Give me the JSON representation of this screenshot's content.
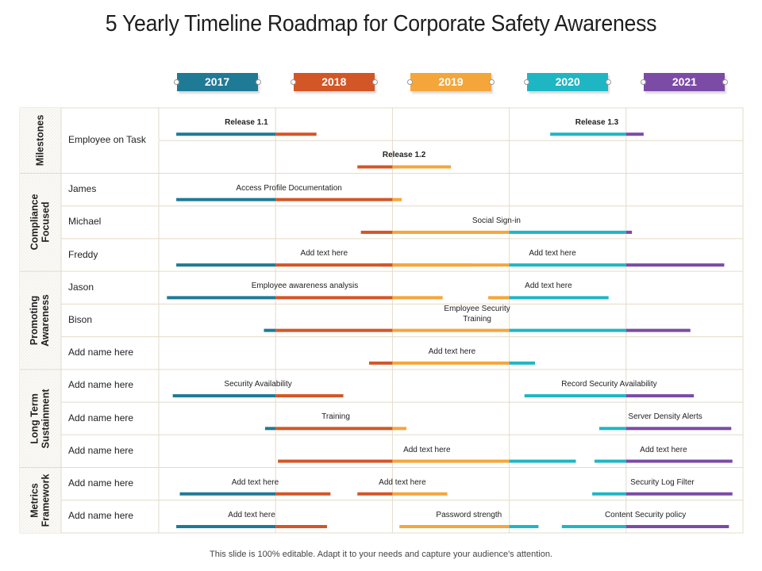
{
  "title": "5 Yearly Timeline Roadmap for Corporate Safety Awareness",
  "footer": "This slide is 100% editable. Adapt it to your needs and capture your audience's attention.",
  "colors": {
    "2017": "#1f7a96",
    "2018": "#d35626",
    "2019": "#f5a63b",
    "2020": "#1fb6c4",
    "2021": "#7b4ba6",
    "grid": "#e2dcc8"
  },
  "years": [
    "2017",
    "2018",
    "2019",
    "2020",
    "2021"
  ],
  "groups": [
    {
      "label": "Milestones",
      "rows": [
        "Employee on Task"
      ]
    },
    {
      "label": "Compliance\nFocused",
      "rows": [
        "James",
        "Michael",
        "Freddy"
      ]
    },
    {
      "label": "Promoting\nAwareness",
      "rows": [
        "Jason",
        "Bison",
        "Add name here"
      ]
    },
    {
      "label": "Long Term\nSustainment",
      "rows": [
        "Add name here",
        "Add name here",
        "Add name here"
      ]
    },
    {
      "label": "Metrics\nFramework",
      "rows": [
        "Add name here",
        "Add name here"
      ]
    }
  ],
  "chart_data": {
    "type": "gantt",
    "x_axis": {
      "unit": "year",
      "start": 2017,
      "end": 2022
    },
    "bars": [
      {
        "row": 0,
        "sub": 0,
        "start": 2017.15,
        "end": 2018.35,
        "label": "Release 1.1",
        "bold": true
      },
      {
        "row": 0,
        "sub": 0,
        "start": 2020.35,
        "end": 2021.15,
        "label": "Release 1.3",
        "bold": true
      },
      {
        "row": 0,
        "sub": 1,
        "start": 2018.7,
        "end": 2019.5,
        "label": "Release 1.2",
        "bold": true
      },
      {
        "row": 1,
        "start": 2017.15,
        "end": 2019.08,
        "label": "Access Profile Documentation"
      },
      {
        "row": 2,
        "start": 2018.73,
        "end": 2021.05,
        "label": "Social Sign-in"
      },
      {
        "row": 3,
        "start": 2017.15,
        "end": 2019.68,
        "label": "Add text here"
      },
      {
        "row": 3,
        "start": 2018.9,
        "end": 2021.84,
        "label": "Add text here"
      },
      {
        "row": 4,
        "start": 2017.07,
        "end": 2019.43,
        "label": "Employee awareness analysis"
      },
      {
        "row": 4,
        "start": 2019.82,
        "end": 2020.85,
        "label": "Add text here"
      },
      {
        "row": 5,
        "start": 2017.9,
        "end": 2021.55,
        "label": "Employee Security\nTraining"
      },
      {
        "row": 6,
        "start": 2018.8,
        "end": 2020.22,
        "label": "Add text here"
      },
      {
        "row": 7,
        "start": 2017.12,
        "end": 2018.58,
        "label": "Security Availability"
      },
      {
        "row": 7,
        "start": 2020.13,
        "end": 2021.58,
        "label": "Record Security Availability"
      },
      {
        "row": 8,
        "start": 2017.91,
        "end": 2019.12,
        "label": "Training"
      },
      {
        "row": 8,
        "start": 2020.77,
        "end": 2021.9,
        "label": "Server Density Alerts"
      },
      {
        "row": 9,
        "start": 2018.02,
        "end": 2020.57,
        "label": "Add text here"
      },
      {
        "row": 9,
        "start": 2020.73,
        "end": 2021.91,
        "label": "Add text here"
      },
      {
        "row": 10,
        "start": 2017.18,
        "end": 2018.47,
        "label": "Add text here"
      },
      {
        "row": 10,
        "start": 2018.7,
        "end": 2019.47,
        "label": "Add text here"
      },
      {
        "row": 10,
        "start": 2020.71,
        "end": 2021.91,
        "label": "Security Log Filter"
      },
      {
        "row": 11,
        "start": 2017.15,
        "end": 2018.44,
        "label": "Add text here"
      },
      {
        "row": 11,
        "start": 2019.06,
        "end": 2020.25,
        "label": "Password strength"
      },
      {
        "row": 11,
        "start": 2020.45,
        "end": 2021.88,
        "label": "Content Security policy"
      }
    ]
  }
}
